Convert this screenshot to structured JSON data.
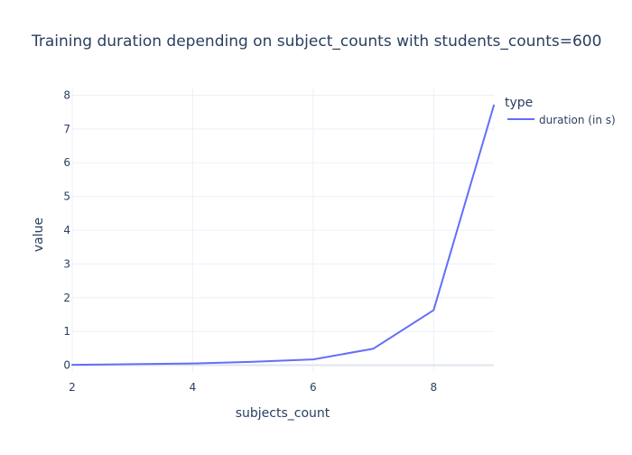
{
  "chart_data": {
    "type": "line",
    "title": "Training duration depending on subject_counts with students_counts=600",
    "xlabel": "subjects_count",
    "ylabel": "value",
    "xlim": [
      2,
      9
    ],
    "ylim": [
      -0.2,
      8.2
    ],
    "x_ticks": [
      2,
      4,
      6,
      8
    ],
    "y_ticks": [
      0,
      1,
      2,
      3,
      4,
      5,
      6,
      7,
      8
    ],
    "grid": true,
    "legend": {
      "title": "type",
      "position": "top-right"
    },
    "series": [
      {
        "name": "duration (in s)",
        "color": "#636efa",
        "x": [
          2,
          3,
          4,
          5,
          6,
          7,
          8,
          9
        ],
        "values": [
          0.01,
          0.03,
          0.05,
          0.1,
          0.17,
          0.49,
          1.63,
          7.7
        ]
      }
    ]
  }
}
